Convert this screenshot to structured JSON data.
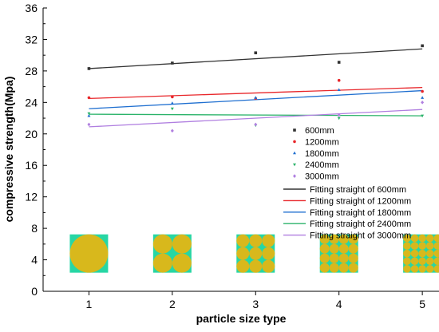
{
  "chart_data": {
    "type": "scatter",
    "title": "",
    "xlabel": "particle size type",
    "ylabel": "compressive strength(Mpa)",
    "xlim": [
      0.45,
      5.2
    ],
    "ylim": [
      0,
      36
    ],
    "x_ticks": [
      "1",
      "2",
      "3",
      "4",
      "5"
    ],
    "y_ticks": [
      "0",
      "4",
      "8",
      "12",
      "16",
      "20",
      "24",
      "28",
      "32",
      "36"
    ],
    "grid": false,
    "legend_position": "center-right",
    "series": [
      {
        "name": "600mm",
        "marker": "square",
        "color": "#333333",
        "x": [
          1,
          2,
          3,
          4,
          5
        ],
        "y": [
          28.3,
          29.0,
          30.3,
          29.1,
          31.2
        ]
      },
      {
        "name": "1200mm",
        "marker": "circle",
        "color": "#e8262a",
        "x": [
          1,
          2,
          3,
          4,
          5
        ],
        "y": [
          24.6,
          24.7,
          24.5,
          26.8,
          25.4
        ]
      },
      {
        "name": "1800mm",
        "marker": "triangle-up",
        "color": "#1f6fd0",
        "x": [
          1,
          2,
          3,
          4,
          5
        ],
        "y": [
          22.3,
          23.9,
          24.6,
          25.6,
          24.6
        ]
      },
      {
        "name": "2400mm",
        "marker": "triangle-down",
        "color": "#2bb36a",
        "x": [
          1,
          2,
          3,
          4,
          5
        ],
        "y": [
          22.6,
          23.2,
          21.1,
          22.0,
          22.3
        ]
      },
      {
        "name": "3000mm",
        "marker": "diamond",
        "color": "#b07fe0",
        "x": [
          1,
          2,
          3,
          4,
          5
        ],
        "y": [
          21.2,
          20.4,
          21.2,
          22.4,
          24.0
        ]
      }
    ],
    "fits": [
      {
        "name": "Fitting straight of 600mm",
        "color": "#333333",
        "y_at_1": 28.3,
        "y_at_5": 30.8
      },
      {
        "name": "Fitting straight of 1200mm",
        "color": "#e8262a",
        "y_at_1": 24.5,
        "y_at_5": 25.9
      },
      {
        "name": "Fitting straight of 1800mm",
        "color": "#1f6fd0",
        "y_at_1": 23.2,
        "y_at_5": 25.5
      },
      {
        "name": "Fitting straight of 2400mm",
        "color": "#2bb36a",
        "y_at_1": 22.5,
        "y_at_5": 22.3
      },
      {
        "name": "Fitting straight of 3000mm",
        "color": "#b07fe0",
        "y_at_1": 20.9,
        "y_at_5": 23.1
      }
    ],
    "inset_images": [
      {
        "x": 1,
        "particles_per_side": 1
      },
      {
        "x": 2,
        "particles_per_side": 2
      },
      {
        "x": 3,
        "particles_per_side": 3
      },
      {
        "x": 4,
        "particles_per_side": 4
      },
      {
        "x": 5,
        "particles_per_side": 5
      }
    ],
    "inset_colors": {
      "background": "#27d6a4",
      "particle": "#d8b81c"
    }
  }
}
